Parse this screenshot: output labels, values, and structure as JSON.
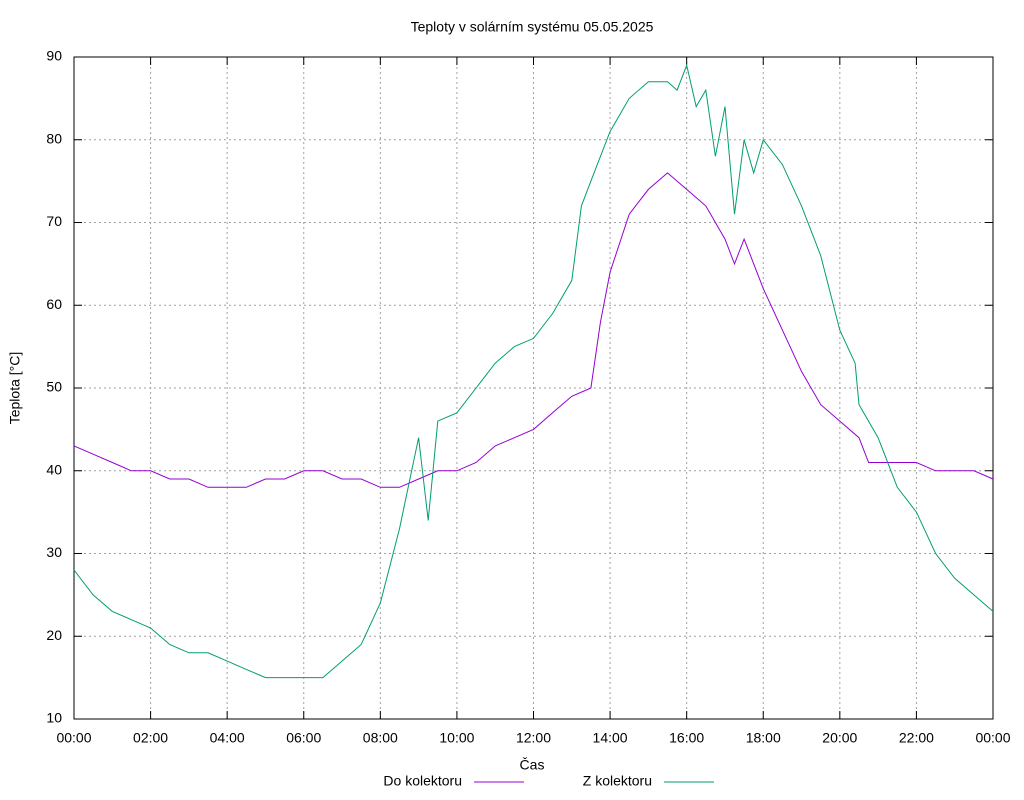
{
  "chart_data": {
    "type": "line",
    "title": "Teploty v solárním systému 05.05.2025",
    "xlabel": "Čas",
    "ylabel": "Teplota [°C]",
    "xlim": [
      0,
      24
    ],
    "ylim": [
      10,
      90
    ],
    "xticks": [
      {
        "value": 0,
        "label": "00:00"
      },
      {
        "value": 2,
        "label": "02:00"
      },
      {
        "value": 4,
        "label": "04:00"
      },
      {
        "value": 6,
        "label": "06:00"
      },
      {
        "value": 8,
        "label": "08:00"
      },
      {
        "value": 10,
        "label": "10:00"
      },
      {
        "value": 12,
        "label": "12:00"
      },
      {
        "value": 14,
        "label": "14:00"
      },
      {
        "value": 16,
        "label": "16:00"
      },
      {
        "value": 18,
        "label": "18:00"
      },
      {
        "value": 20,
        "label": "20:00"
      },
      {
        "value": 22,
        "label": "22:00"
      },
      {
        "value": 24,
        "label": "00:00"
      }
    ],
    "yticks": [
      10,
      20,
      30,
      40,
      50,
      60,
      70,
      80,
      90
    ],
    "grid": true,
    "legend": "bottom",
    "series": [
      {
        "name": "Do kolektoru",
        "color": "#9400d3",
        "x": [
          0,
          0.5,
          1,
          1.5,
          2,
          2.5,
          3,
          3.5,
          4,
          4.5,
          5,
          5.5,
          6,
          6.5,
          7,
          7.5,
          8,
          8.5,
          9,
          9.5,
          10,
          10.5,
          11,
          11.5,
          12,
          12.5,
          13,
          13.5,
          13.75,
          14,
          14.5,
          15,
          15.5,
          16,
          16.5,
          17,
          17.25,
          17.5,
          18,
          18.5,
          19,
          19.5,
          20,
          20.5,
          20.75,
          21,
          21.5,
          22,
          22.5,
          23,
          23.5,
          24
        ],
        "values": [
          43,
          42,
          41,
          40,
          40,
          39,
          39,
          38,
          38,
          38,
          39,
          39,
          40,
          40,
          39,
          39,
          38,
          38,
          39,
          40,
          40,
          41,
          43,
          44,
          45,
          47,
          49,
          50,
          58,
          64,
          71,
          74,
          76,
          74,
          72,
          68,
          65,
          68,
          62,
          57,
          52,
          48,
          46,
          44,
          41,
          41,
          41,
          41,
          40,
          40,
          40,
          39
        ]
      },
      {
        "name": "Z kolektoru",
        "color": "#009e73",
        "x": [
          0,
          0.5,
          1,
          1.5,
          2,
          2.5,
          3,
          3.5,
          4,
          4.5,
          5,
          5.5,
          6,
          6.5,
          7,
          7.5,
          8,
          8.5,
          9,
          9.25,
          9.5,
          10,
          10.5,
          11,
          11.5,
          12,
          12.5,
          13,
          13.25,
          13.5,
          14,
          14.5,
          15,
          15.5,
          15.75,
          16,
          16.25,
          16.5,
          16.75,
          17,
          17.25,
          17.5,
          17.75,
          18,
          18.5,
          19,
          19.5,
          20,
          20.4,
          20.5,
          21,
          21.5,
          22,
          22.5,
          23,
          23.5,
          24
        ],
        "values": [
          28,
          25,
          23,
          22,
          21,
          19,
          18,
          18,
          17,
          16,
          15,
          15,
          15,
          15,
          17,
          19,
          24,
          33,
          44,
          34,
          46,
          47,
          50,
          53,
          55,
          56,
          59,
          63,
          72,
          75,
          81,
          85,
          87,
          87,
          86,
          89,
          84,
          86,
          78,
          84,
          71,
          80,
          76,
          80,
          77,
          72,
          66,
          57,
          53,
          48,
          44,
          38,
          35,
          30,
          27,
          25,
          23
        ]
      }
    ]
  }
}
